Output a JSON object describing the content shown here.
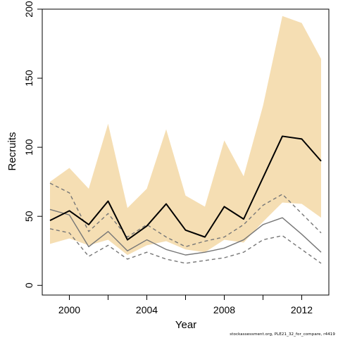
{
  "chart_data": {
    "type": "line",
    "title": "",
    "xlabel": "Year",
    "ylabel": "Recruits",
    "xlim": [
      1998.6,
      2013.4
    ],
    "ylim": [
      -7,
      200
    ],
    "x_ticks": [
      2000,
      2004,
      2008,
      2012
    ],
    "x_minor_ticks": [
      2002,
      2006,
      2010
    ],
    "y_ticks": [
      0,
      50,
      100,
      150,
      200
    ],
    "grid": false,
    "legend": "none",
    "x": [
      1999,
      2000,
      2001,
      2002,
      2003,
      2004,
      2005,
      2006,
      2007,
      2008,
      2009,
      2010,
      2011,
      2012,
      2013
    ],
    "band": {
      "color": "#f5deb3",
      "upper": [
        75,
        85,
        70,
        117,
        56,
        70,
        113,
        65,
        57,
        105,
        79,
        130,
        195,
        190,
        164
      ],
      "lower": [
        30,
        34,
        29,
        33,
        22,
        29,
        32,
        26,
        24,
        33,
        31,
        46,
        60,
        59,
        49
      ]
    },
    "series": [
      {
        "style": "solid-black-bold",
        "color": "#000000",
        "values": [
          47,
          54,
          44,
          61,
          33,
          43,
          59,
          40,
          35,
          57,
          48,
          78,
          108,
          106,
          90
        ]
      },
      {
        "style": "solid-gray",
        "color": "#777777",
        "values": [
          55,
          51,
          28,
          39,
          25,
          33,
          26,
          22,
          24,
          27,
          33,
          44,
          49,
          37,
          24
        ]
      },
      {
        "style": "dashed-gray-upper",
        "color": "#777777",
        "values": [
          74,
          67,
          39,
          52,
          35,
          44,
          35,
          28,
          32,
          35,
          44,
          58,
          66,
          52,
          38
        ]
      },
      {
        "style": "dashed-gray-lower",
        "color": "#777777",
        "values": [
          41,
          38,
          21,
          29,
          19,
          24,
          19,
          16,
          18,
          20,
          24,
          33,
          36,
          26,
          16
        ]
      }
    ]
  },
  "footer_text": "stockassessment.org, PLE21_32_for_compare, r4419"
}
